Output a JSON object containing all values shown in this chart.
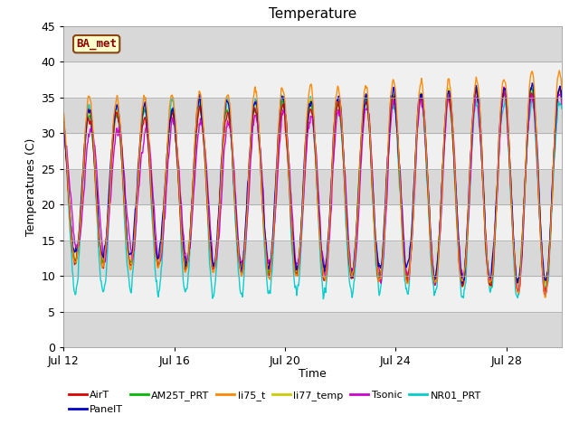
{
  "title": "Temperature",
  "xlabel": "Time",
  "ylabel": "Temperatures (C)",
  "ylim": [
    0,
    45
  ],
  "yticks": [
    0,
    5,
    10,
    15,
    20,
    25,
    30,
    35,
    40,
    45
  ],
  "xlim": [
    12,
    30
  ],
  "xtick_days": [
    12,
    16,
    20,
    24,
    28
  ],
  "xtick_labels": [
    "Jul 12",
    "Jul 16",
    "Jul 20",
    "Jul 24",
    "Jul 28"
  ],
  "series_colors": {
    "AirT": "#dd0000",
    "PanelT": "#0000cc",
    "AM25T_PRT": "#00bb00",
    "li75_t": "#ff8800",
    "li77_temp": "#cccc00",
    "Tsonic": "#cc00cc",
    "NR01_PRT": "#00cccc"
  },
  "annotation_text": "BA_met",
  "bg_dark": "#d8d8d8",
  "bg_light": "#f0f0f0",
  "title_fontsize": 11,
  "label_fontsize": 9,
  "tick_fontsize": 9
}
